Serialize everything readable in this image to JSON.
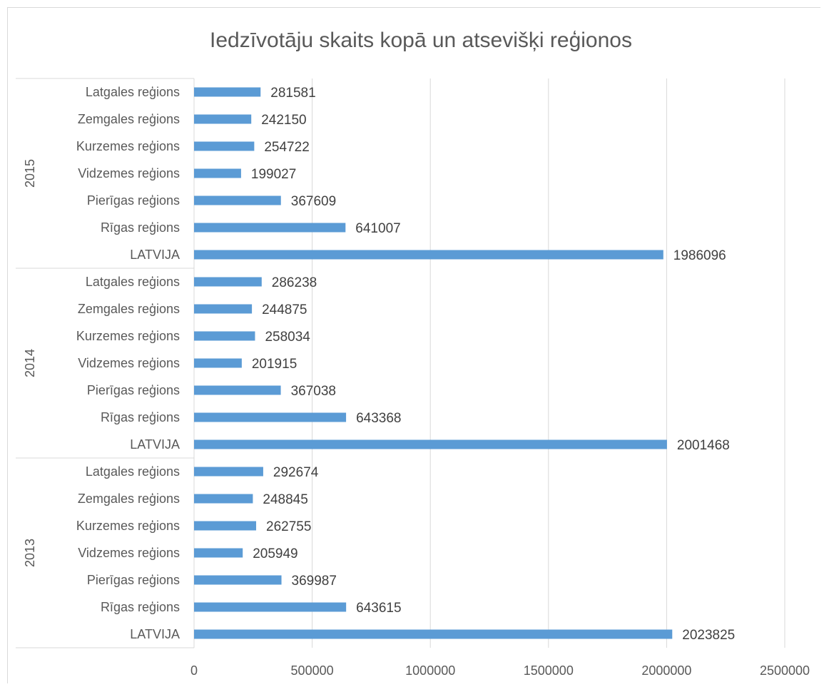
{
  "chart_data": {
    "type": "bar",
    "orientation": "horizontal",
    "title": "Iedzīvotāju skaits kopā un atsevišķi reģionos",
    "xlabel": "",
    "ylabel": "",
    "xlim": [
      0,
      2500000
    ],
    "ticks": [
      "0",
      "500000",
      "1000000",
      "1500000",
      "2000000",
      "2500000"
    ],
    "tick_values": [
      0,
      500000,
      1000000,
      1500000,
      2000000,
      2500000
    ],
    "grid": true,
    "legend": "none",
    "bar_color": "#5b9bd5",
    "groups": [
      {
        "name": "2015",
        "categories": [
          "Latgales reģions",
          "Zemgales reģions",
          "Kurzemes reģions",
          "Vidzemes reģions",
          "Pierīgas reģions",
          "Rīgas reģions",
          "LATVIJA"
        ],
        "values": [
          281581,
          242150,
          254722,
          199027,
          367609,
          641007,
          1986096
        ]
      },
      {
        "name": "2014",
        "categories": [
          "Latgales reģions",
          "Zemgales reģions",
          "Kurzemes reģions",
          "Vidzemes reģions",
          "Pierīgas reģions",
          "Rīgas reģions",
          "LATVIJA"
        ],
        "values": [
          286238,
          244875,
          258034,
          201915,
          367038,
          643368,
          2001468
        ]
      },
      {
        "name": "2013",
        "categories": [
          "Latgales reģions",
          "Zemgales reģions",
          "Kurzemes reģions",
          "Vidzemes reģions",
          "Pierīgas reģions",
          "Rīgas reģions",
          "LATVIJA"
        ],
        "values": [
          292674,
          248845,
          262755,
          205949,
          369987,
          643615,
          2023825
        ]
      }
    ]
  }
}
